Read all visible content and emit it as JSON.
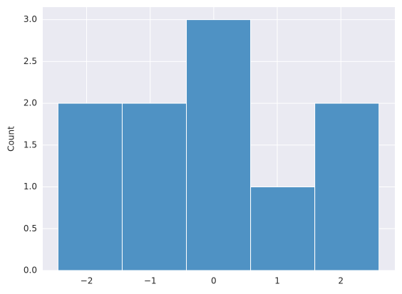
{
  "chart_data": {
    "type": "histogram",
    "ylabel": "Count",
    "bins": [
      -2.45,
      -1.44,
      -0.43,
      0.58,
      1.59,
      2.6
    ],
    "values": [
      2,
      2,
      3,
      1,
      2
    ],
    "color": "#4f92c4",
    "background": "#eaeaf2",
    "grid": true,
    "xlim": [
      -2.69,
      2.85
    ],
    "xticks": [
      {
        "value": -2,
        "label": "−2"
      },
      {
        "value": -1,
        "label": "−1"
      },
      0,
      1,
      2
    ],
    "ylim": [
      0,
      3.15
    ],
    "yticks": [
      {
        "value": 0,
        "label": "0.0"
      },
      0.5,
      {
        "value": 1,
        "label": "1.0"
      },
      1.5,
      {
        "value": 2,
        "label": "2.0"
      },
      2.5,
      {
        "value": 3,
        "label": "3.0"
      }
    ]
  }
}
